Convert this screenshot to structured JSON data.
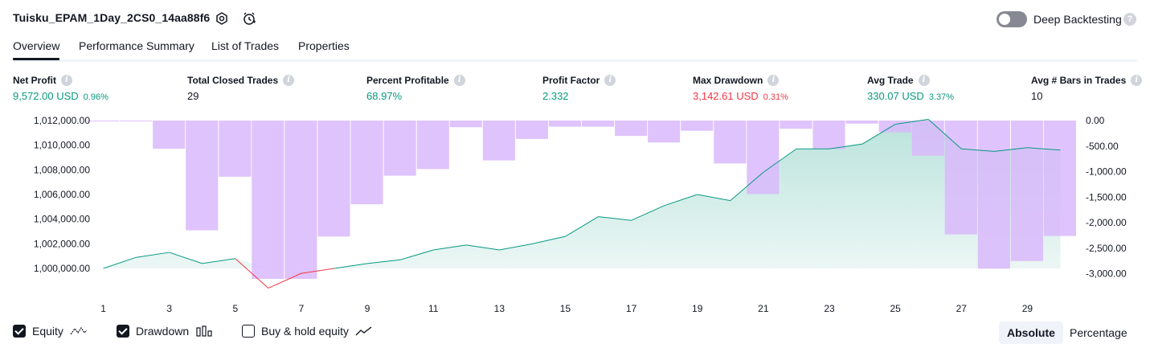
{
  "header": {
    "title": "Tuisku_EPAM_1Day_2CS0_14aa88f6",
    "deep_backtesting_label": "Deep Backtesting",
    "help_icon": "?"
  },
  "tabs": [
    {
      "label": "Overview",
      "active": true
    },
    {
      "label": "Performance Summary",
      "active": false
    },
    {
      "label": "List of Trades",
      "active": false
    },
    {
      "label": "Properties",
      "active": false
    }
  ],
  "metrics": [
    {
      "label": "Net Profit",
      "value": "9,572.00 USD",
      "pct": "0.96%",
      "color": "green"
    },
    {
      "label": "Total Closed Trades",
      "value": "29",
      "pct": "",
      "color": "dark"
    },
    {
      "label": "Percent Profitable",
      "value": "68.97%",
      "pct": "",
      "color": "green"
    },
    {
      "label": "Profit Factor",
      "value": "2.332",
      "pct": "",
      "color": "green"
    },
    {
      "label": "Max Drawdown",
      "value": "3,142.61 USD",
      "pct": "0.31%",
      "color": "red"
    },
    {
      "label": "Avg Trade",
      "value": "330.07 USD",
      "pct": "3.37%",
      "color": "green"
    },
    {
      "label": "Avg # Bars in Trades",
      "value": "10",
      "pct": "",
      "color": "dark"
    }
  ],
  "info_icon": "i",
  "chart_data": {
    "type": "line",
    "x_ticks": [
      "1",
      "3",
      "5",
      "7",
      "9",
      "11",
      "13",
      "15",
      "17",
      "19",
      "21",
      "23",
      "25",
      "27",
      "29"
    ],
    "left_axis_ticks": [
      "1,012,000.00",
      "1,010,000.00",
      "1,008,000.00",
      "1,006,000.00",
      "1,004,000.00",
      "1,002,000.00",
      "1,000,000.00"
    ],
    "right_axis_ticks": [
      "0.00",
      "-500.00",
      "-1,000.00",
      "-1,500.00",
      "-2,000.00",
      "-2,500.00",
      "-3,000.00"
    ],
    "left_ylim": [
      999000,
      1012000
    ],
    "right_ylim": [
      -3100,
      0
    ],
    "series": [
      {
        "name": "Equity",
        "type": "area",
        "color": "#089981",
        "drawdown_color": "#f23645",
        "x": [
          1,
          2,
          3,
          4,
          5,
          6,
          7,
          8,
          9,
          10,
          11,
          12,
          13,
          14,
          15,
          16,
          17,
          18,
          19,
          20,
          21,
          22,
          23,
          24,
          25,
          26,
          27,
          28,
          29,
          30
        ],
        "values": [
          1000000,
          1000900,
          1001300,
          1000400,
          1000800,
          998400,
          999600,
          1000000,
          1000400,
          1000700,
          1001500,
          1001900,
          1001500,
          1002000,
          1002600,
          1004200,
          1003900,
          1005100,
          1006000,
          1005500,
          1007800,
          1009700,
          1009700,
          1010100,
          1011700,
          1012100,
          1009700,
          1009500,
          1009800,
          1009600
        ]
      },
      {
        "name": "Drawdown",
        "type": "bar",
        "color": "#d9b8fc",
        "x": [
          1,
          2,
          3,
          4,
          5,
          6,
          7,
          8,
          9,
          10,
          11,
          12,
          13,
          14,
          15,
          16,
          17,
          18,
          19,
          20,
          21,
          22,
          23,
          24,
          25,
          26,
          27,
          28,
          29,
          30
        ],
        "values": [
          -5,
          -5,
          -550,
          -2150,
          -1100,
          -3100,
          -3100,
          -2270,
          -1640,
          -1080,
          -950,
          -130,
          -780,
          -360,
          -120,
          -120,
          -300,
          -430,
          -200,
          -840,
          -1440,
          -160,
          -560,
          -60,
          -230,
          -690,
          -2230,
          -2900,
          -2750,
          -2260
        ]
      }
    ]
  },
  "legend": {
    "equity": {
      "label": "Equity",
      "checked": true,
      "icon": "equity-line-icon"
    },
    "drawdown": {
      "label": "Drawdown",
      "checked": true,
      "icon": "drawdown-bars-icon"
    },
    "buy_hold": {
      "label": "Buy & hold equity",
      "checked": false,
      "icon": "buy-hold-line-icon"
    }
  },
  "view_toggle": {
    "absolute": "Absolute",
    "percentage": "Percentage",
    "selected": "absolute"
  }
}
